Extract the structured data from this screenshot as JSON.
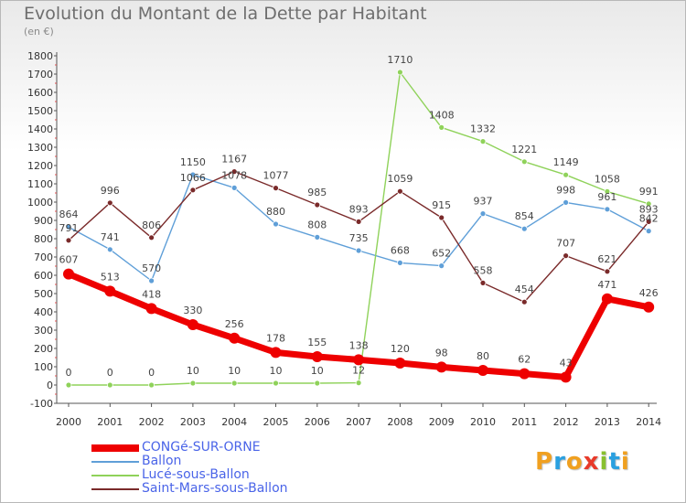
{
  "chart_data": {
    "type": "line",
    "title": "Evolution du Montant de la Dette par Habitant",
    "subtitle": "(en €)",
    "xlabel": "",
    "ylabel": "",
    "ylim": [
      -100,
      1800
    ],
    "yticks": [
      -100,
      0,
      100,
      200,
      300,
      400,
      500,
      600,
      700,
      800,
      900,
      1000,
      1100,
      1200,
      1300,
      1400,
      1500,
      1600,
      1700,
      1800
    ],
    "x": [
      "2000",
      "2001",
      "2002",
      "2003",
      "2004",
      "2005",
      "2006",
      "2007",
      "2008",
      "2009",
      "2010",
      "2011",
      "2012",
      "2013",
      "2014"
    ],
    "grid": false,
    "legend_position": "bottom-left",
    "series": [
      {
        "name": "CONGé-SUR-ORNE",
        "color": "#ee0000",
        "values": [
          607,
          513,
          418,
          330,
          256,
          178,
          155,
          138,
          120,
          98,
          80,
          62,
          43,
          471,
          426
        ],
        "labels": [
          "607",
          "513",
          "418",
          "330",
          "256",
          "178",
          "155",
          "138",
          "120",
          "98",
          "80",
          "62",
          "43",
          "471",
          "426"
        ]
      },
      {
        "name": "Ballon",
        "color": "#5f9fd8",
        "values": [
          864,
          741,
          570,
          1150,
          1078,
          880,
          808,
          735,
          668,
          652,
          937,
          854,
          998,
          961,
          842
        ],
        "labels": [
          "864",
          "741",
          "570",
          "1150",
          "1078",
          "880",
          "808",
          "735",
          "668",
          "652",
          "937",
          "854",
          "998",
          "961",
          "842"
        ]
      },
      {
        "name": "Lucé-sous-Ballon",
        "color": "#8fd25a",
        "values": [
          0,
          0,
          0,
          10,
          10,
          10,
          10,
          12,
          1710,
          1408,
          1332,
          1221,
          1149,
          1058,
          991
        ],
        "labels": [
          "0",
          "0",
          "0",
          "10",
          "10",
          "10",
          "10",
          "12",
          "1710",
          "1408",
          "1332",
          "1221",
          "1149",
          "1058",
          "991"
        ]
      },
      {
        "name": "Saint-Mars-sous-Ballon",
        "color": "#7a2a2a",
        "values": [
          791,
          996,
          806,
          1066,
          1167,
          1077,
          985,
          893,
          1059,
          915,
          558,
          454,
          707,
          621,
          893
        ],
        "labels": [
          "791",
          "996",
          "806",
          "1066",
          "1167",
          "1077",
          "985",
          "893",
          "1059",
          "915",
          "558",
          "454",
          "707",
          "621",
          "893"
        ]
      }
    ]
  },
  "logo": {
    "letters": [
      "P",
      "r",
      "o",
      "x",
      "i",
      "t",
      "i"
    ],
    "colors": [
      "#f0a020",
      "#2aa0e0",
      "#f0a020",
      "#e83a2a",
      "#88c030",
      "#2aa0e0",
      "#f0a020"
    ]
  }
}
